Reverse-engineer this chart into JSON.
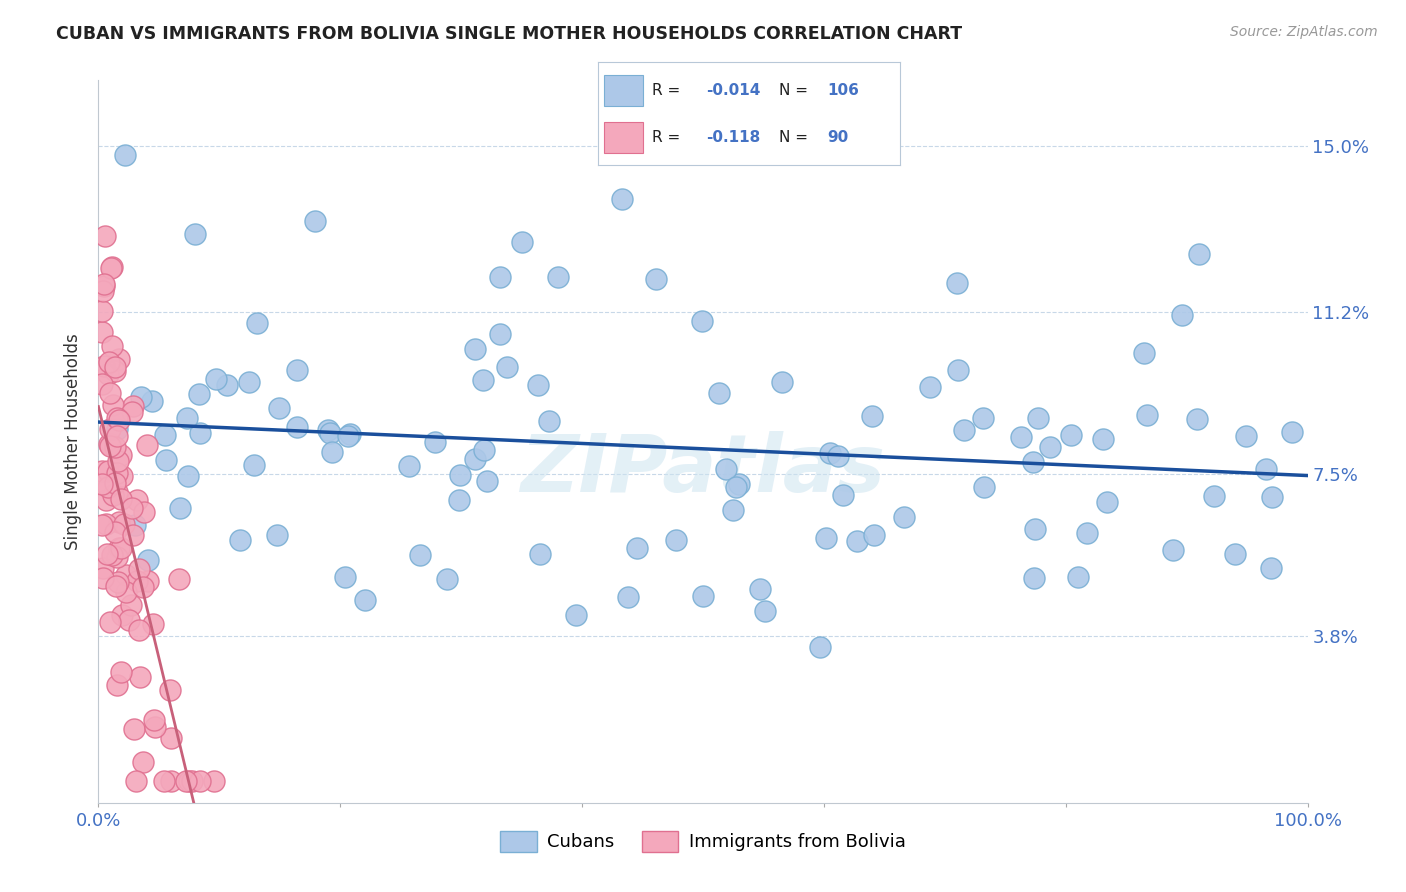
{
  "title": "CUBAN VS IMMIGRANTS FROM BOLIVIA SINGLE MOTHER HOUSEHOLDS CORRELATION CHART",
  "source": "Source: ZipAtlas.com",
  "ylabel": "Single Mother Households",
  "ytick_vals": [
    0.0,
    0.038,
    0.075,
    0.112,
    0.15
  ],
  "ytick_labels": [
    "",
    "3.8%",
    "7.5%",
    "11.2%",
    "15.0%"
  ],
  "watermark": "ZIPatlas",
  "cubans_R": "-0.014",
  "cubans_N": "106",
  "bolivia_R": "-0.118",
  "bolivia_N": "90",
  "cubans_color": "#adc8e8",
  "cubans_edge": "#7aafd4",
  "bolivia_color": "#f4a8bc",
  "bolivia_edge": "#e07090",
  "trend_cubans_color": "#1a4f9c",
  "trend_bolivia_solid_color": "#c8607a",
  "trend_bolivia_dash_color": "#e0a0b0",
  "legend_R_color": "#4472c4",
  "legend_N_color": "#4472c4",
  "legend_text_color": "#222222",
  "xlim": [
    0.0,
    1.0
  ],
  "ylim": [
    0.0,
    0.165
  ]
}
